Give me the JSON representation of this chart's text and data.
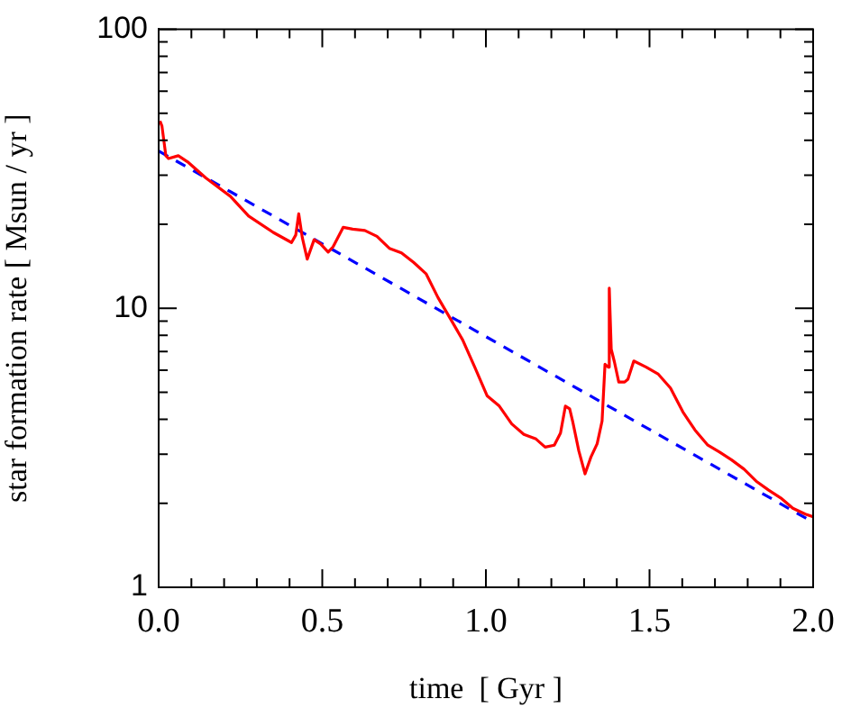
{
  "chart_data": {
    "type": "line",
    "xlabel": "time  [ Gyr ]",
    "ylabel": "star formation rate [ Msun / yr ]",
    "log": "y",
    "marker": "none",
    "xlim": [
      0,
      2
    ],
    "xticks": [
      {
        "value": 0,
        "label": "0.0"
      },
      {
        "value": 0.1,
        "label": null
      },
      {
        "value": 0.2,
        "label": null
      },
      {
        "value": 0.3,
        "label": null
      },
      {
        "value": 0.4,
        "label": null
      },
      {
        "value": 0.5,
        "label": "0.5"
      },
      {
        "value": 0.6,
        "label": null
      },
      {
        "value": 0.7,
        "label": null
      },
      {
        "value": 0.8,
        "label": null
      },
      {
        "value": 0.9,
        "label": null
      },
      {
        "value": 1,
        "label": "1.0"
      },
      {
        "value": 1.1,
        "label": null
      },
      {
        "value": 1.2,
        "label": null
      },
      {
        "value": 1.3,
        "label": null
      },
      {
        "value": 1.4,
        "label": null
      },
      {
        "value": 1.5,
        "label": "1.5"
      },
      {
        "value": 1.6,
        "label": null
      },
      {
        "value": 1.7,
        "label": null
      },
      {
        "value": 1.8,
        "label": null
      },
      {
        "value": 1.9,
        "label": null
      },
      {
        "value": 2,
        "label": "2.0"
      }
    ],
    "ylim": [
      1,
      100
    ],
    "yticks": [
      1,
      {
        "value": 2,
        "label": null
      },
      {
        "value": 3,
        "label": null
      },
      {
        "value": 4,
        "label": null
      },
      {
        "value": 5,
        "label": null
      },
      {
        "value": 6,
        "label": null
      },
      {
        "value": 7,
        "label": null
      },
      {
        "value": 8,
        "label": null
      },
      {
        "value": 9,
        "label": null
      },
      10,
      {
        "value": 20,
        "label": null
      },
      {
        "value": 30,
        "label": null
      },
      {
        "value": 40,
        "label": null
      },
      {
        "value": 50,
        "label": null
      },
      {
        "value": 60,
        "label": null
      },
      {
        "value": 70,
        "label": null
      },
      {
        "value": 80,
        "label": null
      },
      {
        "value": 90,
        "label": null
      },
      100
    ],
    "series": [
      {
        "color": "#ff0000",
        "line_style": "solid",
        "x": [
          0.004,
          0.01,
          0.022,
          0.03,
          0.06,
          0.088,
          0.144,
          0.219,
          0.275,
          0.35,
          0.406,
          0.419,
          0.428,
          0.439,
          0.454,
          0.475,
          0.495,
          0.518,
          0.533,
          0.564,
          0.593,
          0.63,
          0.667,
          0.705,
          0.742,
          0.779,
          0.817,
          0.854,
          0.892,
          0.929,
          0.966,
          1.004,
          1.041,
          1.079,
          1.116,
          1.153,
          1.181,
          1.209,
          1.228,
          1.243,
          1.256,
          1.265,
          1.284,
          1.303,
          1.321,
          1.34,
          1.355,
          1.364,
          1.374,
          1.377,
          1.383,
          1.393,
          1.406,
          1.424,
          1.434,
          1.452,
          1.49,
          1.527,
          1.564,
          1.602,
          1.639,
          1.677,
          1.714,
          1.751,
          1.789,
          1.826,
          1.864,
          1.901,
          1.938,
          1.976,
          2.0
        ],
        "values": [
          46.9,
          45,
          35.2,
          34.4,
          35.2,
          33.5,
          29.3,
          25.2,
          21.4,
          18.7,
          17.2,
          18.3,
          21.8,
          17.9,
          15.0,
          17.6,
          17.0,
          15.9,
          16.6,
          19.5,
          19.2,
          19.0,
          18.1,
          16.4,
          15.8,
          14.6,
          13.3,
          10.9,
          9.15,
          7.7,
          6.15,
          4.85,
          4.46,
          3.85,
          3.53,
          3.4,
          3.18,
          3.23,
          3.57,
          4.46,
          4.36,
          3.94,
          3.08,
          2.55,
          2.93,
          3.27,
          3.94,
          6.3,
          6.15,
          11.8,
          7.14,
          6.4,
          5.44,
          5.44,
          5.57,
          6.47,
          6.15,
          5.8,
          5.18,
          4.25,
          3.66,
          3.24,
          3.05,
          2.86,
          2.65,
          2.4,
          2.23,
          2.09,
          1.92,
          1.83,
          1.79
        ]
      },
      {
        "color": "#0000ff",
        "line_style": "dashed",
        "x": [
          0,
          2
        ],
        "values": [
          36.6,
          1.71
        ]
      }
    ]
  }
}
